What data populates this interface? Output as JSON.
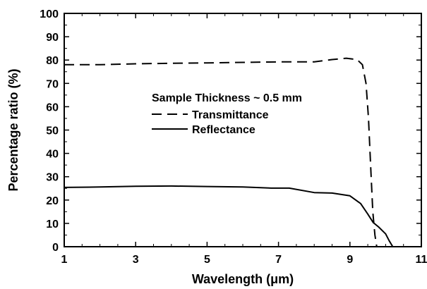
{
  "chart_data": {
    "type": "line",
    "xlabel": "Wavelength (μm)",
    "ylabel": "Percentage ratio (%)",
    "xlim": [
      1,
      11
    ],
    "ylim": [
      0,
      100
    ],
    "x_ticks": [
      1,
      3,
      5,
      7,
      9,
      11
    ],
    "y_ticks": [
      0,
      10,
      20,
      30,
      40,
      50,
      60,
      70,
      80,
      90,
      100
    ],
    "grid": false,
    "annotation": "Sample Thickness ~ 0.5 mm",
    "legend_position": "center",
    "series": [
      {
        "name": "Transmittance",
        "style": "dashed",
        "color": "#000000",
        "points": [
          [
            1.0,
            78.0
          ],
          [
            2.0,
            78.0
          ],
          [
            3.0,
            78.4
          ],
          [
            4.0,
            78.6
          ],
          [
            5.0,
            78.8
          ],
          [
            6.0,
            79.0
          ],
          [
            7.0,
            79.2
          ],
          [
            8.0,
            79.2
          ],
          [
            8.5,
            80.2
          ],
          [
            8.9,
            80.8
          ],
          [
            9.2,
            80.2
          ],
          [
            9.35,
            78.0
          ],
          [
            9.45,
            70.0
          ],
          [
            9.52,
            55.0
          ],
          [
            9.58,
            35.0
          ],
          [
            9.64,
            15.0
          ],
          [
            9.7,
            5.0
          ],
          [
            9.75,
            0.0
          ]
        ]
      },
      {
        "name": "Reflectance",
        "style": "solid",
        "color": "#000000",
        "points": [
          [
            1.0,
            25.4
          ],
          [
            2.0,
            25.6
          ],
          [
            3.0,
            25.9
          ],
          [
            4.0,
            26.0
          ],
          [
            5.0,
            25.8
          ],
          [
            6.0,
            25.6
          ],
          [
            6.8,
            25.1
          ],
          [
            7.3,
            25.1
          ],
          [
            8.0,
            23.2
          ],
          [
            8.5,
            23.0
          ],
          [
            9.0,
            21.8
          ],
          [
            9.3,
            18.5
          ],
          [
            9.5,
            14.0
          ],
          [
            9.65,
            10.4
          ],
          [
            9.8,
            8.5
          ],
          [
            10.0,
            5.5
          ],
          [
            10.1,
            2.5
          ],
          [
            10.2,
            0.0
          ]
        ]
      }
    ]
  }
}
